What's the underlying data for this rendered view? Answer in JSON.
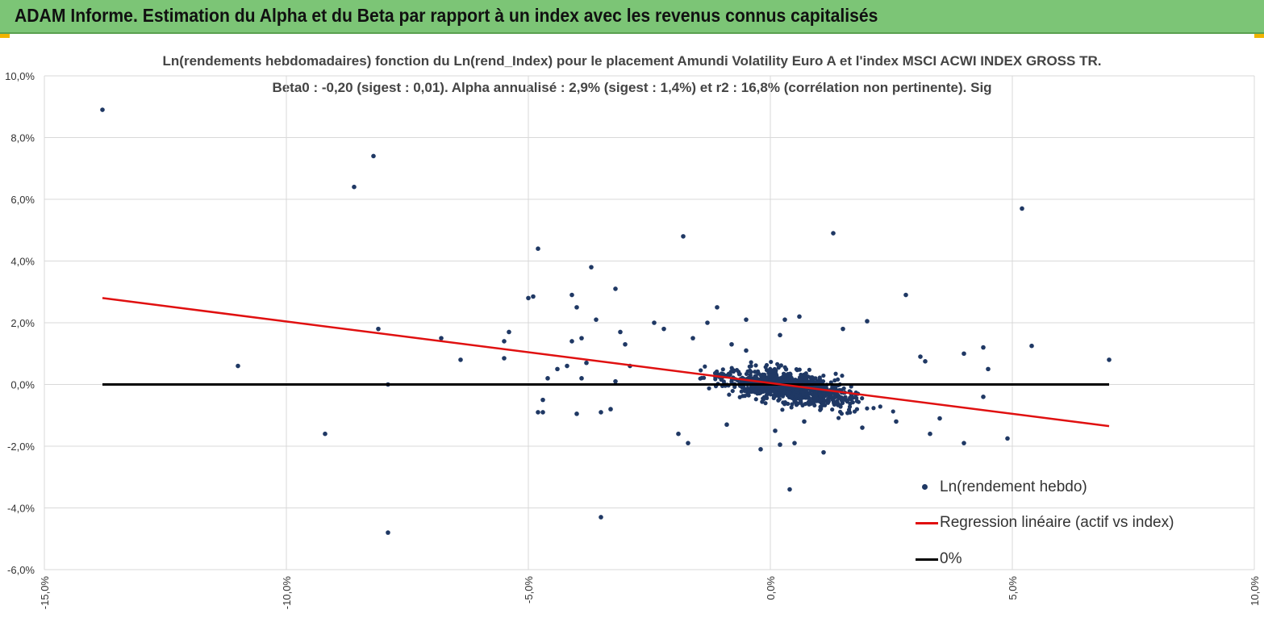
{
  "banner": {
    "title": "ADAM Informe. Estimation du Alpha et du Beta par rapport à un index avec les revenus connus capitalisés",
    "color": "#7cc576"
  },
  "chart_data": {
    "type": "scatter",
    "title": "Ln(rendements hebdomadaires) fonction du Ln(rend_Index) pour le placement Amundi Volatility Euro A  et l'index MSCI ACWI INDEX GROSS TR.",
    "subtitle": "Beta0 : -0,20 (sigest : 0,01). Alpha annualisé : 2,9% (sigest : 1,4%) et r2 : 16,8% (corrélation non pertinente). Sig",
    "xlim": [
      -15,
      10
    ],
    "ylim": [
      -6,
      10
    ],
    "x_ticks": [
      "-15,0%",
      "-10,0%",
      "-5,0%",
      "0,0%",
      "5,0%",
      "10,0%"
    ],
    "y_ticks": [
      "10,0%",
      "8,0%",
      "6,0%",
      "4,0%",
      "2,0%",
      "0,0%",
      "-2,0%",
      "-4,0%",
      "-6,0%"
    ],
    "grid": true,
    "legend_position": "bottom-right",
    "series": [
      {
        "name": "Ln(rendement hebdo)",
        "kind": "scatter",
        "color": "#1f3864",
        "points": [
          [
            -13.8,
            8.9
          ],
          [
            -8.2,
            7.4
          ],
          [
            -8.6,
            6.4
          ],
          [
            -4.8,
            4.4
          ],
          [
            -1.8,
            4.8
          ],
          [
            1.3,
            4.9
          ],
          [
            5.2,
            5.7
          ],
          [
            -3.7,
            3.8
          ],
          [
            -3.2,
            3.1
          ],
          [
            -5.0,
            2.8
          ],
          [
            -4.9,
            2.85
          ],
          [
            -4.1,
            2.9
          ],
          [
            -4.0,
            2.5
          ],
          [
            -1.1,
            2.5
          ],
          [
            2.8,
            2.9
          ],
          [
            -7.9,
            0.0
          ],
          [
            -11,
            0.6
          ],
          [
            -9.2,
            -1.6
          ],
          [
            -7.9,
            -4.8
          ],
          [
            -3.5,
            -4.3
          ],
          [
            0.4,
            -3.4
          ],
          [
            -8.1,
            1.8
          ],
          [
            -6.8,
            1.5
          ],
          [
            -6.4,
            0.8
          ],
          [
            -5.5,
            1.4
          ],
          [
            -5.4,
            1.7
          ],
          [
            -5.5,
            0.85
          ],
          [
            -4.7,
            -0.9
          ],
          [
            -4.8,
            -0.9
          ],
          [
            -4.7,
            -0.5
          ],
          [
            -4.6,
            0.2
          ],
          [
            -4.0,
            -0.95
          ],
          [
            -3.5,
            -0.9
          ],
          [
            -1.9,
            -1.6
          ],
          [
            -1.7,
            -1.9
          ],
          [
            -0.2,
            -2.1
          ],
          [
            0.2,
            -1.95
          ],
          [
            0.5,
            -1.9
          ],
          [
            1.1,
            -2.2
          ],
          [
            4.9,
            -1.75
          ],
          [
            4.0,
            -1.9
          ],
          [
            5.4,
            1.25
          ],
          [
            7.0,
            0.8
          ],
          [
            4.4,
            1.2
          ],
          [
            4.5,
            0.5
          ],
          [
            4.4,
            -0.4
          ],
          [
            4.0,
            1.0
          ],
          [
            3.1,
            0.9
          ],
          [
            3.2,
            0.75
          ],
          [
            -0.5,
            1.1
          ],
          [
            0.2,
            1.6
          ],
          [
            0.6,
            2.2
          ],
          [
            1.5,
            1.8
          ],
          [
            2.0,
            2.05
          ],
          [
            -0.5,
            2.1
          ],
          [
            -2.4,
            2.0
          ],
          [
            -1.3,
            2.0
          ],
          [
            -3.1,
            1.7
          ],
          [
            -3.0,
            1.3
          ],
          [
            -4.1,
            1.4
          ],
          [
            -3.9,
            1.5
          ],
          [
            -3.6,
            2.1
          ],
          [
            -3.2,
            0.1
          ],
          [
            -2.9,
            0.6
          ],
          [
            -2.2,
            1.8
          ],
          [
            -0.8,
            1.3
          ],
          [
            -1.6,
            1.5
          ],
          [
            0.3,
            2.1
          ],
          [
            -3.8,
            0.7
          ],
          [
            -4.2,
            0.6
          ],
          [
            -3.9,
            0.2
          ],
          [
            -4.4,
            0.5
          ],
          [
            -3.3,
            -0.8
          ],
          [
            1.9,
            -1.4
          ],
          [
            2.6,
            -1.2
          ],
          [
            3.3,
            -1.6
          ],
          [
            3.5,
            -1.1
          ],
          [
            -0.9,
            -1.3
          ],
          [
            0.1,
            -1.5
          ],
          [
            0.7,
            -1.2
          ]
        ]
      },
      {
        "name": "Regression linéaire (actif vs index)",
        "kind": "line",
        "color": "#e01010",
        "x": [
          -13.8,
          7.0
        ],
        "y": [
          2.8,
          -1.35
        ]
      },
      {
        "name": "0%",
        "kind": "line",
        "color": "#000000",
        "x": [
          -13.8,
          7.0
        ],
        "y": [
          0.0,
          0.0
        ]
      }
    ],
    "cluster": {
      "center_x": 0.4,
      "center_y": -0.1,
      "count": 900,
      "note": "dense cloud of weekly observations around origin, x mostly -2.5% to 3.5%"
    }
  }
}
